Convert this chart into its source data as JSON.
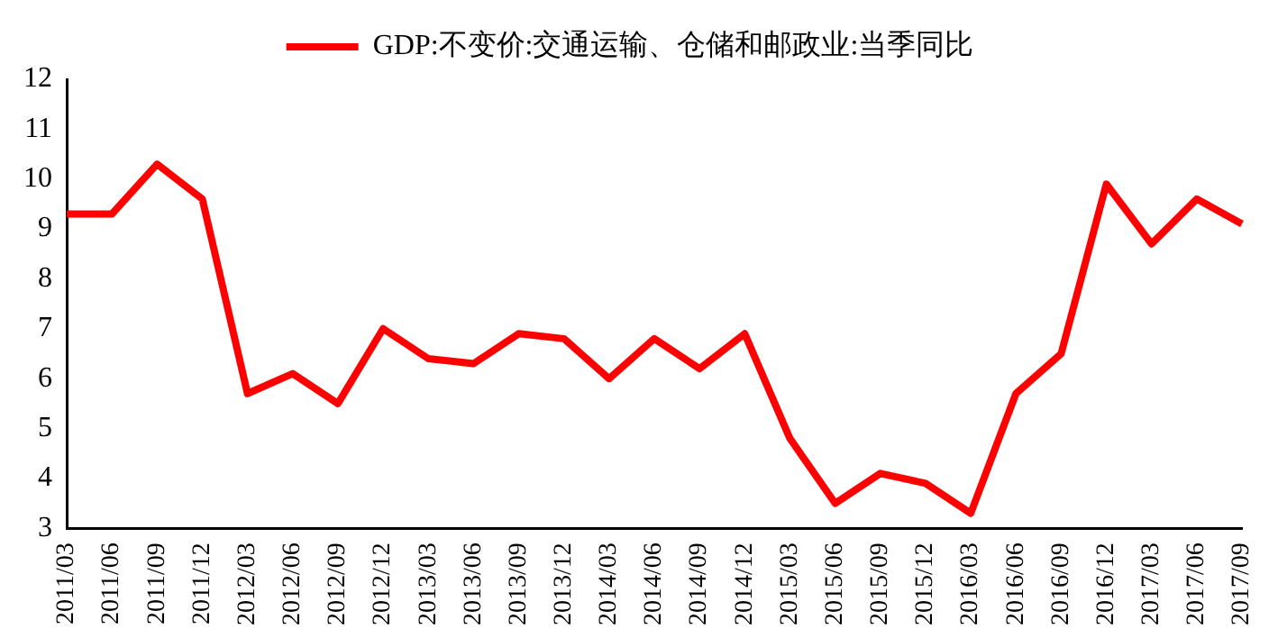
{
  "chart_data": {
    "type": "line",
    "categories": [
      "2011/03",
      "2011/06",
      "2011/09",
      "2011/12",
      "2012/03",
      "2012/06",
      "2012/09",
      "2012/12",
      "2013/03",
      "2013/06",
      "2013/09",
      "2013/12",
      "2014/03",
      "2014/06",
      "2014/09",
      "2014/12",
      "2015/03",
      "2015/06",
      "2015/09",
      "2015/12",
      "2016/03",
      "2016/06",
      "2016/09",
      "2016/12",
      "2017/03",
      "2017/06",
      "2017/09"
    ],
    "series": [
      {
        "name": "GDP:不变价:交通运输、仓储和邮政业:当季同比",
        "color": "#ff0000",
        "values": [
          9.3,
          9.3,
          10.3,
          9.6,
          5.7,
          6.1,
          5.5,
          7.0,
          6.4,
          6.3,
          6.9,
          6.8,
          6.0,
          6.8,
          6.2,
          6.9,
          4.8,
          3.5,
          4.1,
          3.9,
          3.3,
          5.7,
          6.5,
          9.9,
          8.7,
          9.6,
          9.1
        ]
      }
    ],
    "ylim": [
      3,
      12
    ],
    "yticks": [
      3,
      4,
      5,
      6,
      7,
      8,
      9,
      10,
      11,
      12
    ],
    "grid": false,
    "legend": "top",
    "marker": "none",
    "line_style": "solid"
  }
}
